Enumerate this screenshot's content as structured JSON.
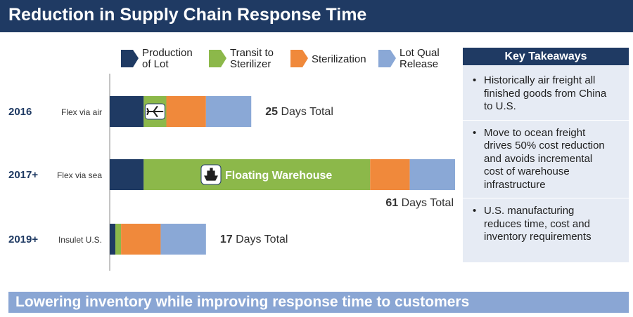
{
  "header": {
    "title": "Reduction in Supply Chain Response Time"
  },
  "chart_data": {
    "type": "bar",
    "orientation": "horizontal",
    "stacked": true,
    "legend_position": "top",
    "categories": [
      "2016",
      "2017+",
      "2019+"
    ],
    "category_sublabels": [
      "Flex via air",
      "Flex via sea",
      "Insulet U.S."
    ],
    "series": [
      {
        "name": "Production of Lot",
        "legend_lines": [
          "Production",
          "of Lot"
        ],
        "color": "#1f3a63",
        "values": [
          6,
          6,
          1
        ]
      },
      {
        "name": "Transit to Sterilizer",
        "legend_lines": [
          "Transit to",
          "Sterilizer"
        ],
        "color": "#8cb84a",
        "values": [
          4,
          40,
          1
        ]
      },
      {
        "name": "Sterilization",
        "legend_lines": [
          "Sterilization"
        ],
        "color": "#f0893b",
        "values": [
          7,
          7,
          7
        ]
      },
      {
        "name": "Lot Qual Release",
        "legend_lines": [
          "Lot Qual",
          "Release"
        ],
        "color": "#8aa8d6",
        "values": [
          8,
          8,
          8
        ]
      }
    ],
    "totals": [
      {
        "number": "25",
        "suffix": " Days Total"
      },
      {
        "number": "61",
        "suffix": " Days Total"
      },
      {
        "number": "17",
        "suffix": " Days Total"
      }
    ],
    "annotations": {
      "floating_warehouse": "Floating Warehouse",
      "air_icon": "airplane-icon",
      "sea_icon": "ship-icon"
    },
    "xlim": [
      0,
      61
    ],
    "grid": false
  },
  "takeaways": {
    "title": "Key Takeaways",
    "bullet": "•",
    "items": [
      {
        "lines": [
          "Historically air freight all",
          "finished goods from China",
          "to U.S."
        ]
      },
      {
        "lines": [
          "Move to ocean freight",
          "drives 50% cost reduction",
          "and avoids incremental",
          "cost of warehouse",
          "infrastructure"
        ]
      },
      {
        "lines": [
          "U.S. manufacturing",
          "reduces time, cost and",
          "inventory requirements"
        ]
      }
    ]
  },
  "banner": {
    "text": "Lowering inventory while improving response time to customers"
  }
}
